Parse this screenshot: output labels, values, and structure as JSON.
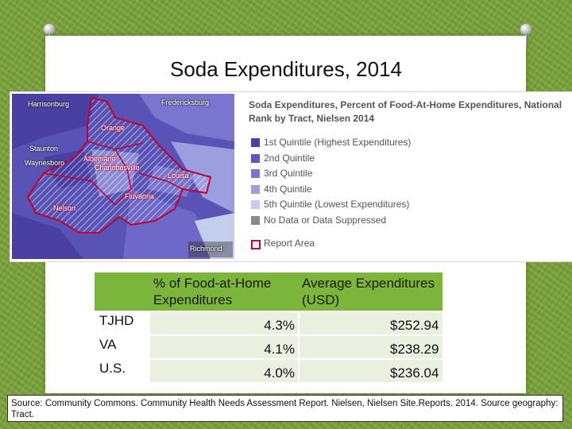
{
  "slide": {
    "title_main": "Soda Expenditures,",
    "title_year": "2014"
  },
  "map": {
    "places": {
      "harrisonburg": "Harrisonburg",
      "orange": "Orange",
      "staunton": "Staunton",
      "waynesboro": "Waynesboro",
      "albemarle": "Albemarle",
      "charlottesville": "Charlottesville",
      "louisa": "Louisa",
      "fluvanna": "Fluvanna",
      "nelson": "Nelson",
      "fredericksburg": "Fredericksburg",
      "richmond": "Richmond"
    }
  },
  "legend": {
    "title": "Soda Expenditures, Percent of Food-At-Home Expenditures, National Rank by Tract, Nielsen 2014",
    "items": [
      {
        "label": "1st Quintile (Highest Expenditures)",
        "color": "#4a3fa3"
      },
      {
        "label": "2nd Quintile",
        "color": "#5f57be"
      },
      {
        "label": "3rd Quintile",
        "color": "#7a76cf"
      },
      {
        "label": "4th Quintile",
        "color": "#9d9edf"
      },
      {
        "label": "5th Quintile (Lowest Expenditures)",
        "color": "#c5cdee"
      },
      {
        "label": "No Data or Data Suppressed",
        "color": "#8a8a8a"
      }
    ],
    "report_area": {
      "label": "Report Area",
      "color": "#c2002b"
    }
  },
  "table": {
    "headers": {
      "pct": "% of Food-at-Home Expenditures",
      "avg": "Average Expenditures (USD)"
    },
    "rows": [
      {
        "name": "TJHD",
        "pct": "4.3%",
        "avg": "$252.94"
      },
      {
        "name": "VA",
        "pct": "4.1%",
        "avg": "$238.29"
      },
      {
        "name": "U.S.",
        "pct": "4.0%",
        "avg": "$236.04"
      }
    ]
  },
  "source": "Source: Community Commons. Community Health Needs Assessment Report. Nielsen, Nielsen Site.Reports. 2014. Source geography: Tract."
}
